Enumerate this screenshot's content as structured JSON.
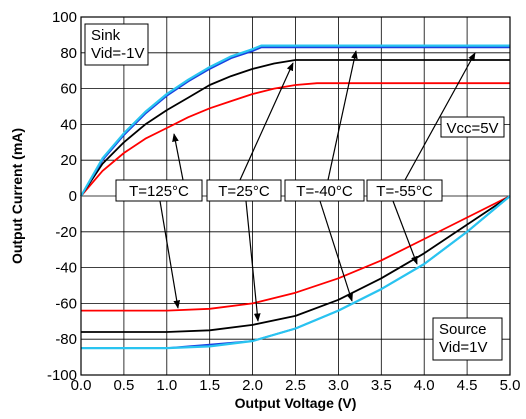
{
  "chart_data": {
    "type": "line",
    "title": "",
    "xlabel": "Output Voltage (V)",
    "ylabel": "Output Current (mA)",
    "xlim": [
      0.0,
      5.0
    ],
    "ylim": [
      -100,
      100
    ],
    "xticks": [
      "0.0",
      "0.5",
      "1.0",
      "1.5",
      "2.0",
      "2.5",
      "3.0",
      "3.5",
      "4.0",
      "4.5",
      "5.0"
    ],
    "yticks": [
      "100",
      "80",
      "60",
      "40",
      "20",
      "0",
      "-20",
      "-40",
      "-60",
      "-80",
      "-100"
    ],
    "grid": true,
    "colors": {
      "red": "#ff0000",
      "black": "#000000",
      "blue": "#1a3fe0",
      "cyan": "#29c4f0"
    },
    "series": [
      {
        "temp": "T=125°C",
        "color": "red",
        "sink": {
          "x": [
            0,
            0.25,
            0.5,
            0.75,
            1.0,
            1.25,
            1.5,
            1.75,
            2.0,
            2.25,
            2.5,
            2.75,
            3.0,
            5.0
          ],
          "y": [
            0,
            14,
            24,
            32,
            38,
            44,
            49,
            53,
            57,
            60,
            62,
            63,
            63,
            63
          ]
        },
        "source": {
          "x": [
            0,
            1.0,
            1.5,
            2.0,
            2.5,
            3.0,
            3.5,
            4.0,
            4.5,
            5.0
          ],
          "y": [
            -64,
            -64,
            -63,
            -60,
            -54,
            -46,
            -36,
            -24,
            -12,
            0
          ]
        }
      },
      {
        "temp": "T=25°C",
        "color": "black",
        "sink": {
          "x": [
            0,
            0.25,
            0.5,
            0.75,
            1.0,
            1.25,
            1.5,
            1.75,
            2.0,
            2.25,
            2.5,
            5.0
          ],
          "y": [
            0,
            18,
            30,
            40,
            48,
            55,
            62,
            67,
            71,
            74,
            76,
            76
          ]
        },
        "source": {
          "x": [
            0,
            1.0,
            1.5,
            2.0,
            2.5,
            3.0,
            3.5,
            4.0,
            4.5,
            5.0
          ],
          "y": [
            -76,
            -76,
            -75,
            -72,
            -67,
            -58,
            -46,
            -32,
            -16,
            0
          ]
        }
      },
      {
        "temp": "T=-40°C",
        "color": "blue",
        "sink": {
          "x": [
            0,
            0.25,
            0.5,
            0.75,
            1.0,
            1.25,
            1.5,
            1.75,
            2.0,
            2.1,
            5.0
          ],
          "y": [
            0,
            20,
            34,
            46,
            56,
            64,
            71,
            77,
            81,
            83,
            83
          ]
        },
        "source": {
          "x": [
            0,
            1.0,
            1.5,
            2.0,
            2.5,
            3.0,
            3.5,
            4.0,
            4.5,
            5.0
          ],
          "y": [
            -85,
            -85,
            -83,
            -81,
            -74,
            -64,
            -52,
            -38,
            -20,
            0
          ]
        }
      },
      {
        "temp": "T=-55°C",
        "color": "cyan",
        "sink": {
          "x": [
            0,
            0.25,
            0.5,
            0.75,
            1.0,
            1.25,
            1.5,
            1.75,
            2.0,
            2.1,
            5.0
          ],
          "y": [
            0,
            21,
            35,
            47,
            57,
            65,
            72,
            78,
            82,
            84,
            84
          ]
        },
        "source": {
          "x": [
            0,
            1.0,
            1.5,
            2.0,
            2.5,
            3.0,
            3.5,
            4.0,
            4.5,
            5.0
          ],
          "y": [
            -85,
            -85,
            -84,
            -81,
            -74,
            -64,
            -52,
            -38,
            -20,
            0
          ]
        }
      }
    ],
    "annotations": {
      "sink_label": [
        "Sink",
        "Vid=-1V"
      ],
      "source_label": [
        "Source",
        "Vid=1V"
      ],
      "vcc_label": "Vcc=5V",
      "temps": [
        "T=125°C",
        "T=25°C",
        "T=-40°C",
        "T=-55°C"
      ]
    }
  }
}
